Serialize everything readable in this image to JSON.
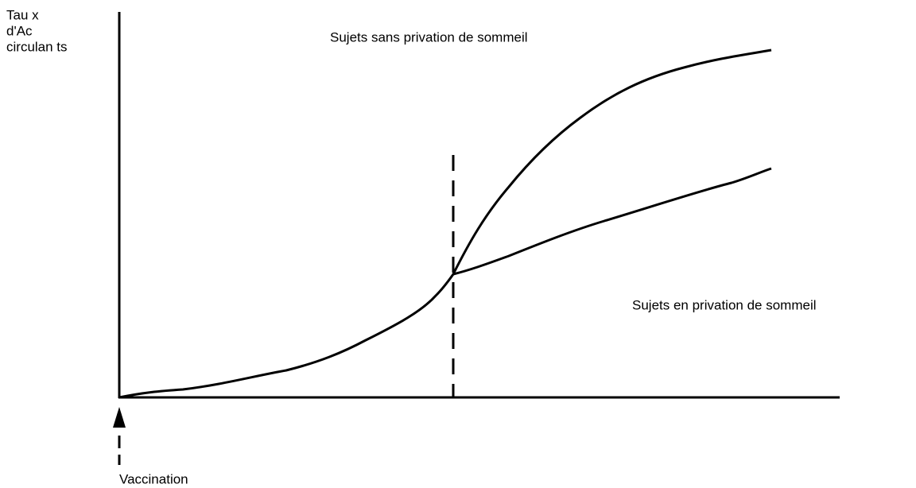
{
  "y_axis_label": [
    "Tau x",
    "d'Ac",
    "circulan ts"
  ],
  "curve_labels": {
    "without_deprivation": "Sujets sans privation de sommeil",
    "with_deprivation": "Sujets en privation de sommeil"
  },
  "event_label": "Vaccination"
}
